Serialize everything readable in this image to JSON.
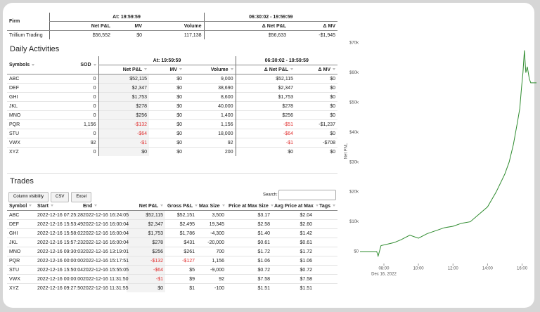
{
  "firm_table": {
    "header": "Firm",
    "groups": [
      "At: 19:59:59",
      "06:30:02 - 19:59:59"
    ],
    "columns": [
      "Net P&L",
      "MV",
      "Volume",
      "Δ Net P&L",
      "Δ MV"
    ],
    "rows": [
      [
        "Trillium Trading",
        "$56,552",
        "$0",
        "117,138",
        "$56,633",
        "-$1,945"
      ]
    ]
  },
  "daily": {
    "title": "Daily Activities",
    "groups": [
      "At: 19:59:59",
      "06:30:02 - 19:59:59"
    ],
    "columns": [
      "Symbols",
      "SOD",
      "Net P&L",
      "MV",
      "Volume",
      "Δ Net P&L",
      "Δ MV"
    ],
    "rows": [
      [
        "ABC",
        "0",
        "$52,115",
        "$0",
        "9,000",
        "$52,115",
        "$0"
      ],
      [
        "DEF",
        "0",
        "$2,347",
        "$0",
        "38,690",
        "$2,347",
        "$0"
      ],
      [
        "GHI",
        "0",
        "$1,753",
        "$0",
        "8,600",
        "$1,753",
        "$0"
      ],
      [
        "JKL",
        "0",
        "$278",
        "$0",
        "40,000",
        "$278",
        "$0"
      ],
      [
        "MNO",
        "0",
        "$256",
        "$0",
        "1,400",
        "$256",
        "$0"
      ],
      [
        "PQR",
        "1,156",
        "-$132",
        "$0",
        "1,156",
        "-$51",
        "-$1,237"
      ],
      [
        "STU",
        "0",
        "-$64",
        "$0",
        "18,000",
        "-$64",
        "$0"
      ],
      [
        "VWX",
        "92",
        "-$1",
        "$0",
        "92",
        "-$1",
        "-$708"
      ],
      [
        "XYZ",
        "0",
        "$0",
        "$0",
        "200",
        "$0",
        "$0"
      ]
    ]
  },
  "trades": {
    "title": "Trades",
    "buttons": [
      "Column visibility",
      "CSV",
      "Excel"
    ],
    "search_label": "Search:",
    "columns": [
      "Symbol",
      "Start",
      "End",
      "Net P&L",
      "Gross P&L",
      "Max Size",
      "Price at Max Size",
      "Avg Price at Max",
      "Tags"
    ],
    "rows": [
      [
        "ABC",
        "2022-12-16 07:25:28",
        "2022-12-16 16:24:05",
        "$52,115",
        "$52,151",
        "3,500",
        "$3.17",
        "$2.04"
      ],
      [
        "DEF",
        "2022-12-16 15:53:49",
        "2022-12-16 16:00:04",
        "$2,347",
        "$2,495",
        "19,345",
        "$2.58",
        "$2.60"
      ],
      [
        "GHI",
        "2022-12-16 15:58:02",
        "2022-12-16 16:00:04",
        "$1,753",
        "$1,786",
        "-4,300",
        "$1.40",
        "$1.42"
      ],
      [
        "JKL",
        "2022-12-16 15:57:23",
        "2022-12-16 16:00:04",
        "$278",
        "$431",
        "-20,000",
        "$0.61",
        "$0.61"
      ],
      [
        "MNO",
        "2022-12-16 09:30:03",
        "2022-12-16 13:19:01",
        "$256",
        "$261",
        "700",
        "$1.72",
        "$1.72"
      ],
      [
        "PQR",
        "2022-12-16 00:00:00",
        "2022-12-16 15:17:51",
        "-$132",
        "-$127",
        "1,156",
        "$1.06",
        "$1.06"
      ],
      [
        "STU",
        "2022-12-16 15:50:04",
        "2022-12-16 15:55:05",
        "-$64",
        "$5",
        "-9,000",
        "$0.72",
        "$0.72"
      ],
      [
        "VWX",
        "2022-12-16 00:00:00",
        "2022-12-16 11:31:50",
        "-$1",
        "$9",
        "92",
        "$7.58",
        "$7.58"
      ],
      [
        "XYZ",
        "2022-12-16 09:27:50",
        "2022-12-16 11:31:55",
        "$0",
        "$1",
        "-100",
        "$1.51",
        "$1.51"
      ]
    ]
  },
  "chart_data": {
    "type": "line",
    "y_label": "Net PNL",
    "x_date_label": "Dec 16, 2022",
    "color": "#2e8b2e",
    "x": [
      "06:37",
      "07:35",
      "07:40",
      "07:50",
      "08:35",
      "09:00",
      "09:30",
      "10:00",
      "10:30",
      "11:00",
      "11:30",
      "12:00",
      "12:30",
      "13:00",
      "13:30",
      "14:00",
      "14:30",
      "15:00",
      "15:15",
      "15:30",
      "15:45",
      "15:52",
      "15:58",
      "16:03",
      "16:08",
      "16:13",
      "16:18",
      "16:25",
      "16:30",
      "16:50"
    ],
    "values": [
      0,
      0,
      -1500,
      2000,
      3000,
      4000,
      5500,
      4500,
      6000,
      7000,
      8000,
      8500,
      9500,
      10000,
      12500,
      15000,
      20000,
      26000,
      30000,
      36000,
      44000,
      48000,
      55000,
      60000,
      67500,
      60000,
      62000,
      58000,
      56600,
      56600
    ],
    "xlim": [
      "06:37",
      "16:50"
    ],
    "xticks": [
      "08:00",
      "10:00",
      "12:00",
      "14:00",
      "16:00"
    ],
    "ylim": [
      -4000,
      72000
    ],
    "yticks": [
      {
        "value": 0,
        "label": "$0"
      },
      {
        "value": 10000,
        "label": "$10k"
      },
      {
        "value": 20000,
        "label": "$20k"
      },
      {
        "value": 30000,
        "label": "$30k"
      },
      {
        "value": 40000,
        "label": "$40k"
      },
      {
        "value": 50000,
        "label": "$50k"
      },
      {
        "value": 60000,
        "label": "$60k"
      },
      {
        "value": 70000,
        "label": "$70k"
      }
    ],
    "grid": false
  }
}
